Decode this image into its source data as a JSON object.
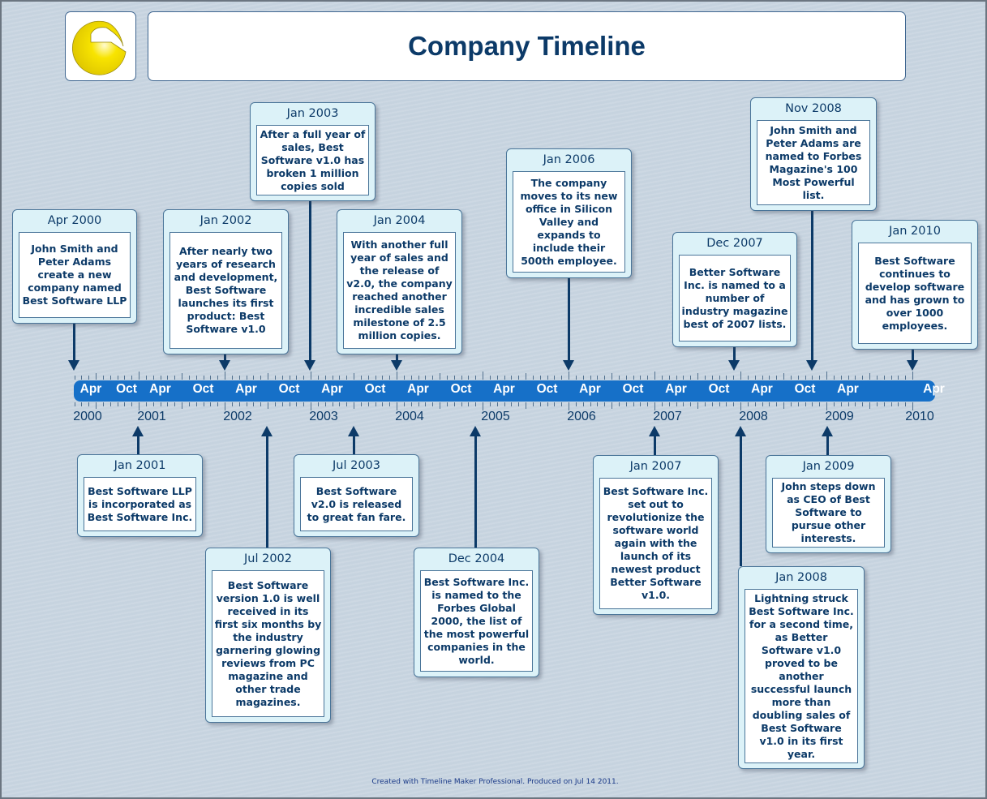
{
  "header": {
    "title": "Company Timeline",
    "logo": "yellow-c-logo"
  },
  "axis": {
    "year_labels": [
      "2000",
      "2001",
      "2002",
      "2003",
      "2004",
      "2005",
      "2006",
      "2007",
      "2008",
      "2009",
      "2010"
    ],
    "month_labels": [
      {
        "label": "Apr",
        "date": "2000-04"
      },
      {
        "label": "Oct",
        "date": "2000-10"
      },
      {
        "label": "Apr",
        "date": "2001-04"
      },
      {
        "label": "Oct",
        "date": "2001-10"
      },
      {
        "label": "Apr",
        "date": "2002-04"
      },
      {
        "label": "Oct",
        "date": "2002-10"
      },
      {
        "label": "Apr",
        "date": "2003-04"
      },
      {
        "label": "Oct",
        "date": "2003-10"
      },
      {
        "label": "Apr",
        "date": "2004-04"
      },
      {
        "label": "Oct",
        "date": "2004-10"
      },
      {
        "label": "Apr",
        "date": "2005-04"
      },
      {
        "label": "Oct",
        "date": "2005-10"
      },
      {
        "label": "Apr",
        "date": "2006-04"
      },
      {
        "label": "Oct",
        "date": "2006-10"
      },
      {
        "label": "Apr",
        "date": "2007-04"
      },
      {
        "label": "Oct",
        "date": "2007-10"
      },
      {
        "label": "Apr",
        "date": "2008-04"
      },
      {
        "label": "Oct",
        "date": "2008-10"
      },
      {
        "label": "Apr",
        "date": "2009-04"
      },
      {
        "label": "Apr",
        "date": "2010-04"
      }
    ],
    "bar_color": "#1670c8"
  },
  "events": [
    {
      "date": "Apr 2000",
      "text": "John Smith and\nPeter Adams\ncreate a new\ncompany named\nBest Software LLP"
    },
    {
      "date": "Jan 2001",
      "text": "Best Software LLP\nis incorporated as\nBest Software Inc."
    },
    {
      "date": "Jan 2002",
      "text": "After nearly two\nyears of research\nand development,\nBest Software\nlaunches its first\nproduct: Best\nSoftware v1.0"
    },
    {
      "date": "Jul 2002",
      "text": "Best Software\nversion 1.0 is well\nreceived in its\nfirst six months by\nthe industry\ngarnering glowing\nreviews from PC\nmagazine and\nother trade\nmagazines."
    },
    {
      "date": "Jan 2003",
      "text": "After a full year of\nsales, Best\nSoftware v1.0 has\nbroken 1 million\ncopies sold"
    },
    {
      "date": "Jul 2003",
      "text": "Best Software\nv2.0 is released\nto great fan fare."
    },
    {
      "date": "Jan 2004",
      "text": "With another full\nyear of sales and\nthe release of\nv2.0, the company\nreached another\nincredible sales\nmilestone of 2.5\nmillion copies."
    },
    {
      "date": "Dec 2004",
      "text": "Best Software Inc.\nis named to the\nForbes Global\n2000, the list of\nthe most powerful\ncompanies in the\nworld."
    },
    {
      "date": "Jan 2006",
      "text": "The company\nmoves to its new\noffice in Silicon\nValley and\nexpands to\ninclude their\n500th employee."
    },
    {
      "date": "Jan 2007",
      "text": "Best Software Inc.\nset out to\nrevolutionize the\nsoftware world\nagain with the\nlaunch of its\nnewest product\nBetter Software\nv1.0."
    },
    {
      "date": "Dec 2007",
      "text": "Better Software\nInc. is named to a\nnumber of\nindustry magazine\nbest of 2007 lists."
    },
    {
      "date": "Jan 2008",
      "text": "Lightning struck\nBest Software Inc.\nfor a second time,\nas Better\nSoftware v1.0\nproved to be\nanother\nsuccessful launch\nmore than\ndoubling sales of\nBest Software\nv1.0 in its first\nyear."
    },
    {
      "date": "Nov 2008",
      "text": "John Smith and\nPeter Adams are\nnamed to Forbes\nMagazine's 100\nMost Powerful\nlist."
    },
    {
      "date": "Jan 2009",
      "text": "John steps down\nas CEO of Best\nSoftware to\npursue other\ninterests."
    },
    {
      "date": "Jan 2010",
      "text": "Best Software\ncontinues to\ndevelop software\nand has grown to\nover 1000\nemployees."
    }
  ],
  "footer": {
    "text": "Created with Timeline Maker Professional. Produced on Jul 14 2011."
  }
}
